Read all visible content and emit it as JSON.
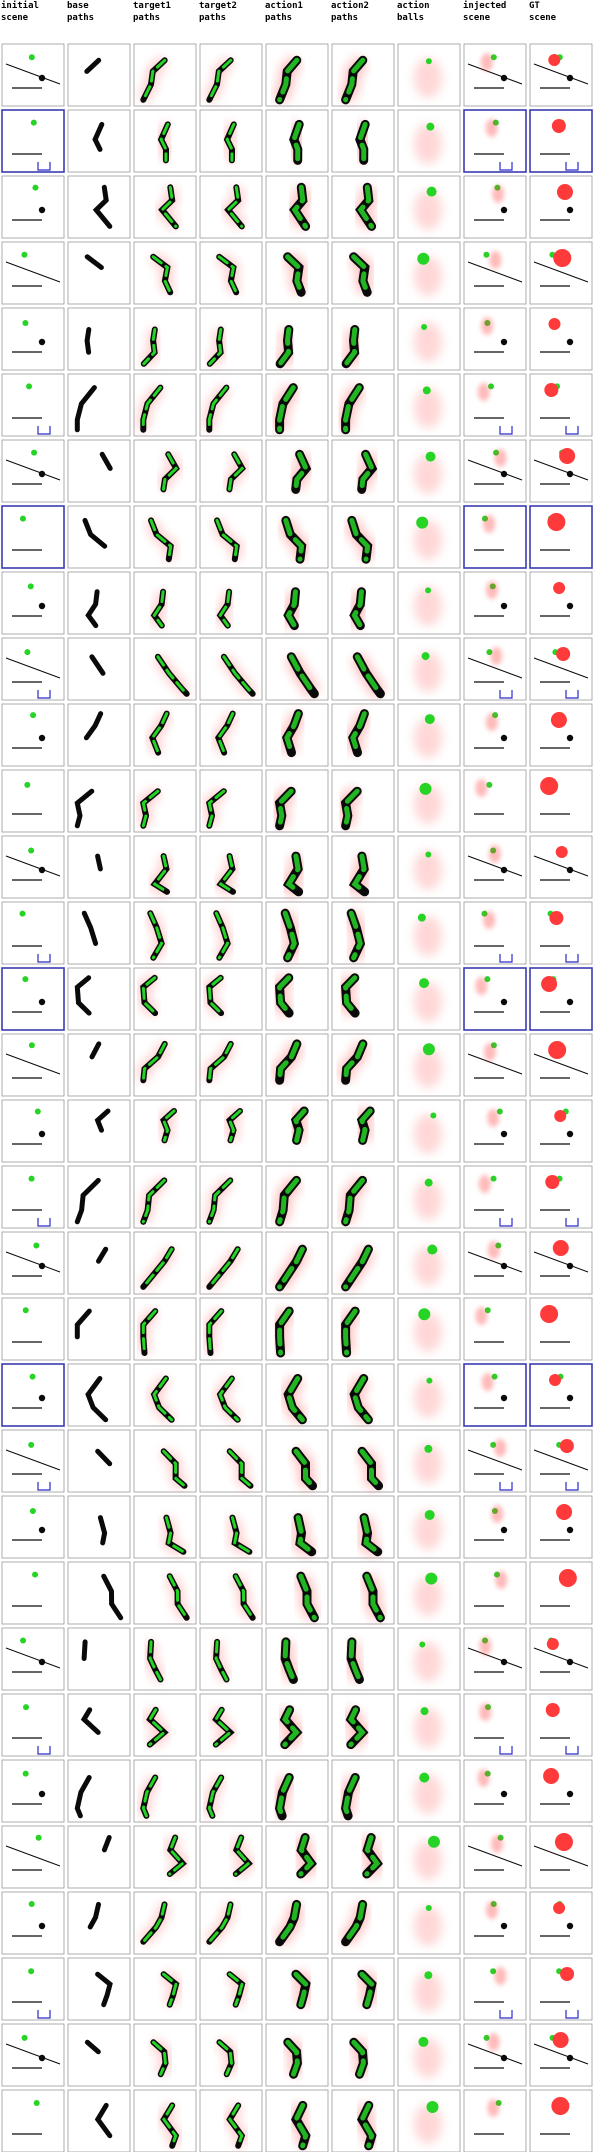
{
  "columns": [
    {
      "label": "initial\nscene"
    },
    {
      "label": "base\npaths"
    },
    {
      "label": "target1\npaths"
    },
    {
      "label": "target2\npaths"
    },
    {
      "label": "action1\npaths"
    },
    {
      "label": "action2\npaths"
    },
    {
      "label": "action\nballs"
    },
    {
      "label": "injected\nscene"
    },
    {
      "label": "GT\nscene"
    }
  ],
  "row_count": 32,
  "colors": {
    "cell_border": "#9a9a9a",
    "scene_border_blue": "#3b3bb0",
    "green": "#26d426",
    "red": "#ff3a3a",
    "black": "#0a0a0a",
    "blue": "#2a2ad0"
  }
}
